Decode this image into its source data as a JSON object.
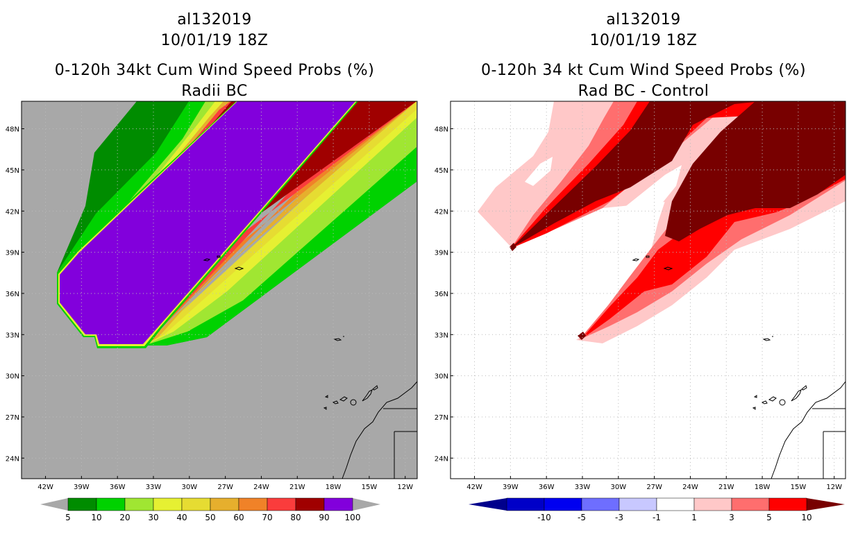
{
  "panels": [
    {
      "storm_id": "al132019",
      "datetime": "10/01/19 18Z",
      "product_title": "0-120h 34kt Cum Wind Speed Probs (%)",
      "subtitle": "Radii BC",
      "colors": {
        "background": "#a8a8a8"
      },
      "colorbar": {
        "labels": [
          "5",
          "10",
          "20",
          "30",
          "40",
          "50",
          "60",
          "70",
          "80",
          "90",
          "100"
        ],
        "colors": [
          "#008c00",
          "#00d200",
          "#a0e632",
          "#e6f032",
          "#e6dc32",
          "#e6af2d",
          "#f08228",
          "#fa3c3c",
          "#a00000",
          "#8200dc"
        ],
        "arrow_color": "#a8a8a8"
      }
    },
    {
      "storm_id": "al132019",
      "datetime": "10/01/19 18Z",
      "product_title": "0-120h 34 kt Cum Wind Speed Probs (%)",
      "subtitle": "Rad BC - Control",
      "colors": {
        "background": "#ffffff"
      },
      "colorbar": {
        "labels": [
          "-10",
          "-5",
          "-3",
          "-1",
          "1",
          "3",
          "5",
          "10"
        ],
        "colors": [
          "#0000c8",
          "#0000f0",
          "#6e6eff",
          "#c8c8ff",
          "#ffffff",
          "#ffc8c8",
          "#ff6e6e",
          "#ff0000"
        ],
        "arrow_left": "#00008c",
        "arrow_right": "#780000"
      }
    }
  ],
  "chart_data": {
    "type": "heatmap",
    "panel_count": 2,
    "map_projection": "lat-lon",
    "lon_range": [
      -44,
      -11
    ],
    "lat_range": [
      22.5,
      50
    ],
    "lon_ticks": [
      "42W",
      "39W",
      "36W",
      "33W",
      "30W",
      "27W",
      "24W",
      "21W",
      "18W",
      "15W",
      "12W"
    ],
    "lat_ticks": [
      "48N",
      "45N",
      "42N",
      "39N",
      "36N",
      "33N",
      "30N",
      "27N",
      "24N"
    ],
    "lon_tick_values": [
      -42,
      -39,
      -36,
      -33,
      -30,
      -27,
      -24,
      -21,
      -18,
      -15,
      -12
    ],
    "lat_tick_values": [
      48,
      45,
      42,
      39,
      36,
      33,
      30,
      27,
      24
    ],
    "grid": true,
    "left_field": "Cumulative 34kt wind speed probability (%), Radii BC",
    "right_field": "Difference Rad BC minus Control (%)"
  }
}
